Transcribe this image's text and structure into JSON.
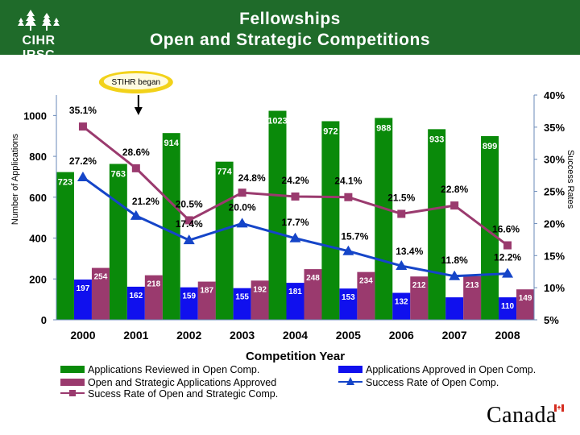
{
  "header": {
    "title_line1": "Fellowships",
    "title_line2": "Open and Strategic Competitions",
    "logo_text": "CIHR IRSC",
    "wordmark": "Canada",
    "colors": {
      "banner": "#1f6b2a",
      "text": "#ffffff"
    }
  },
  "chart_data": {
    "type": "bar",
    "categories": [
      "2000",
      "2001",
      "2002",
      "2003",
      "2004",
      "2005",
      "2006",
      "2007",
      "2008"
    ],
    "xlabel": "Competition Year",
    "ylabel": "Number of Applications",
    "y2label": "Success Rates",
    "ylim": [
      0,
      1100
    ],
    "y2lim": [
      5,
      40
    ],
    "yticks": [
      "0",
      "200",
      "400",
      "600",
      "800",
      "1000"
    ],
    "y2ticks": [
      "5%",
      "10%",
      "15%",
      "20%",
      "25%",
      "30%",
      "35%",
      "40%"
    ],
    "series": [
      {
        "name": "Applications Reviewed in Open Comp.",
        "kind": "bar",
        "color": "#0a8a0a",
        "values": [
          723,
          763,
          914,
          774,
          1023,
          972,
          988,
          933,
          899
        ],
        "labels": [
          "723",
          "763",
          "914",
          "774",
          "1023",
          "972",
          "988",
          "933",
          "899"
        ]
      },
      {
        "name": "Applications Approved in Open Comp.",
        "kind": "bar",
        "color": "#1010ee",
        "values": [
          197,
          162,
          159,
          155,
          181,
          153,
          132,
          110,
          110
        ],
        "labels": [
          "197",
          "162",
          "159",
          "155",
          "181",
          "153",
          "132",
          "",
          "110"
        ]
      },
      {
        "name": "Open and Strategic Applications Approved",
        "kind": "bar",
        "color": "#9a3a6e",
        "values": [
          254,
          218,
          187,
          192,
          248,
          234,
          212,
          213,
          149
        ],
        "labels": [
          "254",
          "218",
          "187",
          "192",
          "248",
          "234",
          "212",
          "213",
          "149"
        ]
      },
      {
        "name": "Sucess Rate of Open and Strategic Comp.",
        "kind": "line",
        "axis": "right",
        "color": "#9a3a6e",
        "values": [
          35.1,
          28.6,
          20.5,
          24.8,
          24.2,
          24.1,
          21.5,
          22.8,
          16.6
        ],
        "labels": [
          "35.1%",
          "28.6%",
          "20.5%",
          "24.8%",
          "24.2%",
          "24.1%",
          "21.5%",
          "22.8%",
          "16.6%"
        ]
      },
      {
        "name": "Success Rate of Open Comp.",
        "kind": "line",
        "axis": "right",
        "color": "#1545c8",
        "values": [
          27.2,
          21.2,
          17.4,
          20.0,
          17.7,
          15.7,
          13.4,
          11.8,
          12.2
        ],
        "labels": [
          "27.2%",
          "21.2%",
          "17.4%",
          "20.0%",
          "17.7%",
          "15.7%",
          "13.4%",
          "11.8%",
          "12.2%"
        ]
      }
    ],
    "legend_order": [
      0,
      1,
      2,
      4,
      3
    ],
    "annotation": {
      "text": "STIHR began",
      "category": "2001"
    }
  }
}
